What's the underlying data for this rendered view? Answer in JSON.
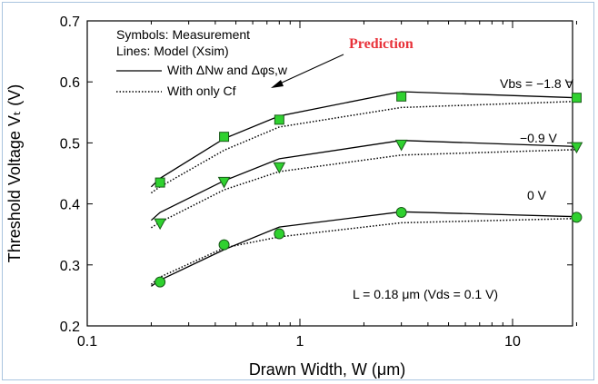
{
  "chart_data": {
    "type": "line",
    "title": "",
    "xlabel": "Drawn Width, W (μm)",
    "ylabel": "Threshold Voltage Vₜ (V)",
    "xscale": "log",
    "xlim": [
      0.1,
      20
    ],
    "ylim": [
      0.2,
      0.7
    ],
    "xticks": [
      0.1,
      1,
      10
    ],
    "xtick_labels": [
      "0.1",
      "1",
      "10"
    ],
    "yticks": [
      0.2,
      0.3,
      0.4,
      0.5,
      0.6,
      0.7
    ],
    "ytick_labels": [
      "0.2",
      "0.3",
      "0.4",
      "0.5",
      "0.6",
      "0.7"
    ],
    "legend": {
      "symbols_text": "Symbols: Measurement",
      "lines_text": "Lines: Model (Xsim)",
      "solid_label": "With ΔNᴡ and Δφs,w",
      "dotted_label": "With only Cf"
    },
    "annotations": {
      "prediction": "Prediction",
      "vbs_high": "Vbs = −1.8 V",
      "vbs_mid": "−0.9 V",
      "vbs_low": "0 V",
      "condition": "L = 0.18 μm (Vds = 0.1 V)"
    },
    "series": [
      {
        "name": "Vbs = -1.8 V",
        "marker": "square",
        "measurement": {
          "x": [
            0.22,
            0.44,
            0.8,
            3,
            20
          ],
          "y": [
            0.435,
            0.51,
            0.538,
            0.576,
            0.574
          ]
        },
        "model_solid": {
          "x": [
            0.2,
            0.22,
            0.44,
            0.8,
            3,
            20
          ],
          "y": [
            0.428,
            0.442,
            0.507,
            0.544,
            0.584,
            0.574
          ]
        },
        "model_dotted": {
          "x": [
            0.2,
            0.22,
            0.44,
            0.8,
            3,
            20
          ],
          "y": [
            0.418,
            0.428,
            0.488,
            0.526,
            0.558,
            0.568
          ]
        }
      },
      {
        "name": "Vbs = -0.9 V",
        "marker": "triangle-down",
        "measurement": {
          "x": [
            0.22,
            0.44,
            0.8,
            3,
            20
          ],
          "y": [
            0.368,
            0.436,
            0.46,
            0.497,
            0.493
          ]
        },
        "model_solid": {
          "x": [
            0.2,
            0.22,
            0.44,
            0.8,
            3,
            20
          ],
          "y": [
            0.373,
            0.386,
            0.438,
            0.474,
            0.504,
            0.494
          ]
        },
        "model_dotted": {
          "x": [
            0.2,
            0.22,
            0.44,
            0.8,
            3,
            20
          ],
          "y": [
            0.361,
            0.37,
            0.423,
            0.453,
            0.48,
            0.489
          ]
        }
      },
      {
        "name": "Vbs = 0 V",
        "marker": "circle",
        "measurement": {
          "x": [
            0.22,
            0.44,
            0.8,
            3,
            20
          ],
          "y": [
            0.272,
            0.333,
            0.351,
            0.386,
            0.378
          ]
        },
        "model_solid": {
          "x": [
            0.2,
            0.22,
            0.44,
            0.8,
            3,
            20
          ],
          "y": [
            0.265,
            0.275,
            0.325,
            0.362,
            0.387,
            0.379
          ]
        },
        "model_dotted": {
          "x": [
            0.2,
            0.22,
            0.44,
            0.8,
            3,
            20
          ],
          "y": [
            0.268,
            0.28,
            0.328,
            0.346,
            0.369,
            0.376
          ]
        }
      }
    ]
  },
  "colors": {
    "marker_fill": "#2fd12f",
    "marker_stroke": "#1a5a1a",
    "prediction": "#e8323a",
    "frame": "#a9c4df"
  }
}
